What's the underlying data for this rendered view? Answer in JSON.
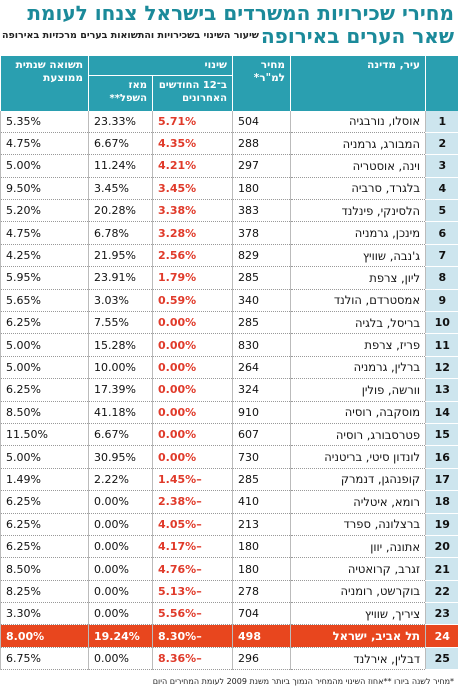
{
  "header": {
    "title": "מחירי שכירויות המשרדים בישראל צנחו לעומת שאר הערים באירופה",
    "subtitle": "שיעור השינוי בשכירויות והתשואות בערים מרכזיות באירופה"
  },
  "table": {
    "columns": {
      "city": "עיר, מדינה",
      "price": "מחיר למ\"ר*",
      "change_group": "שינוי",
      "change_12m": "ב־12 החודשים האחרונים",
      "since_low": "מאז השפל**",
      "yield": "תשואה שנתית ממוצעת"
    },
    "rows": [
      [
        "1",
        "אוסלו, נורבגיה",
        "504",
        "5.71%",
        "23.33%",
        "5.35%"
      ],
      [
        "2",
        "המבורג, גרמניה",
        "288",
        "4.35%",
        "6.67%",
        "4.75%"
      ],
      [
        "3",
        "וינה, אוסטריה",
        "297",
        "4.21%",
        "11.24%",
        "5.00%"
      ],
      [
        "4",
        "בלגרד, סרביה",
        "180",
        "3.45%",
        "3.45%",
        "9.50%"
      ],
      [
        "5",
        "הלסינקי, פינלנד",
        "383",
        "3.38%",
        "20.28%",
        "5.20%"
      ],
      [
        "6",
        "מינכן, גרמניה",
        "378",
        "3.28%",
        "6.78%",
        "4.75%"
      ],
      [
        "7",
        "ג'נבה, שוויץ",
        "829",
        "2.56%",
        "21.95%",
        "4.25%"
      ],
      [
        "8",
        "ליון, צרפת",
        "285",
        "1.79%",
        "23.91%",
        "5.95%"
      ],
      [
        "9",
        "אמסטרדם, הולנד",
        "340",
        "0.59%",
        "3.03%",
        "5.65%"
      ],
      [
        "10",
        "בריסל, בלגיה",
        "285",
        "0.00%",
        "7.55%",
        "6.25%"
      ],
      [
        "11",
        "פריז, צרפת",
        "830",
        "0.00%",
        "15.28%",
        "5.00%"
      ],
      [
        "12",
        "ברלין, גרמניה",
        "264",
        "0.00%",
        "10.00%",
        "5.00%"
      ],
      [
        "13",
        "וורשה, פולין",
        "324",
        "0.00%",
        "17.39%",
        "6.25%"
      ],
      [
        "14",
        "מוסקבה, רוסיה",
        "910",
        "0.00%",
        "41.18%",
        "8.50%"
      ],
      [
        "15",
        "פטרסבורג, רוסיה",
        "607",
        "0.00%",
        "6.67%",
        "11.50%"
      ],
      [
        "16",
        "לונדון סיטי, בריטניה",
        "730",
        "0.00%",
        "30.95%",
        "5.00%"
      ],
      [
        "17",
        "קופנהגן, דנמרק",
        "285",
        "–1.45%",
        "2.22%",
        "1.49%"
      ],
      [
        "18",
        "רומא, איטליה",
        "410",
        "–2.38%",
        "0.00%",
        "6.25%"
      ],
      [
        "19",
        "ברצלונה, ספרד",
        "213",
        "–4.05%",
        "0.00%",
        "6.25%"
      ],
      [
        "20",
        "אתונה, יוון",
        "180",
        "–4.17%",
        "0.00%",
        "6.25%"
      ],
      [
        "21",
        "זגרב, קרואטיה",
        "180",
        "–4.76%",
        "0.00%",
        "8.50%"
      ],
      [
        "22",
        "בוקרשט, רומניה",
        "278",
        "–5.13%",
        "0.00%",
        "8.25%"
      ],
      [
        "23",
        "ציריך, שוויץ",
        "704",
        "–5.56%",
        "0.00%",
        "3.30%"
      ],
      [
        "24",
        "תל אביב, ישראל",
        "498",
        "–8.30%",
        "19.24%",
        "8.00%"
      ],
      [
        "25",
        "דבלין, אירלנד",
        "296",
        "–8.36%",
        "0.00%",
        "6.75%"
      ]
    ]
  },
  "footnote": "*מחיר לשנה ביורו **אחוז השינוי מהמחיר הנמוך ביותר משנת 2009 לעומת המחירים היום"
}
